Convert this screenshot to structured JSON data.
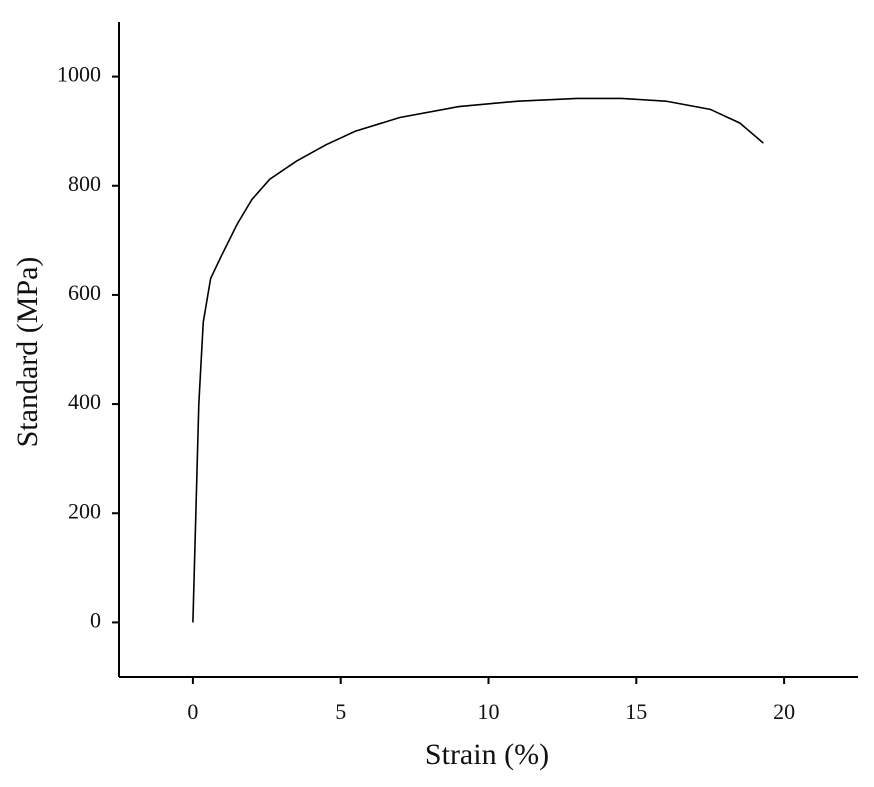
{
  "chart_data": {
    "type": "line",
    "x_label": "Strain (%)",
    "y_label": "Standard (MPa)",
    "x": [
      0,
      0.1,
      0.2,
      0.35,
      0.6,
      0.95,
      1.5,
      2,
      2.6,
      3.5,
      4.5,
      5.5,
      7,
      9,
      11,
      13,
      14.5,
      16,
      17.5,
      18.5,
      19.3
    ],
    "values": [
      0,
      200,
      400,
      550,
      630,
      670,
      730,
      775,
      812,
      845,
      875,
      900,
      925,
      945,
      955,
      960,
      960,
      955,
      940,
      915,
      878
    ],
    "color": "#000000",
    "xlim": [
      -2.5,
      22.5
    ],
    "ylim": [
      -100,
      1100
    ],
    "xticks": [
      0,
      5,
      10,
      15,
      20
    ],
    "yticks": [
      0,
      200,
      400,
      600,
      800,
      1000
    ]
  }
}
